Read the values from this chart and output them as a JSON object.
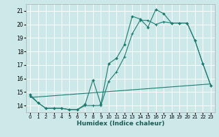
{
  "xlabel": "Humidex (Indice chaleur)",
  "background_color": "#cce8e8",
  "grid_color": "#ffffff",
  "line_color": "#1a7a6e",
  "xlim": [
    -0.5,
    23.5
  ],
  "ylim": [
    13.5,
    21.5
  ],
  "yticks": [
    14,
    15,
    16,
    17,
    18,
    19,
    20,
    21
  ],
  "xticks": [
    0,
    1,
    2,
    3,
    4,
    5,
    6,
    7,
    8,
    9,
    10,
    11,
    12,
    13,
    14,
    15,
    16,
    17,
    18,
    19,
    20,
    21,
    22,
    23
  ],
  "line1_x": [
    0,
    1,
    2,
    3,
    4,
    5,
    6,
    7,
    8,
    9,
    10,
    11,
    12,
    13,
    14,
    15,
    16,
    17,
    18,
    19,
    20,
    21,
    22,
    23
  ],
  "line1_y": [
    14.8,
    14.2,
    13.8,
    13.8,
    13.8,
    13.7,
    13.7,
    14.1,
    15.9,
    14.1,
    17.1,
    17.5,
    18.5,
    20.6,
    20.4,
    19.8,
    21.1,
    20.8,
    20.1,
    20.1,
    20.1,
    18.8,
    17.1,
    15.5
  ],
  "line2_x": [
    0,
    1,
    2,
    3,
    4,
    5,
    6,
    7,
    8,
    9,
    10,
    11,
    12,
    13,
    14,
    15,
    16,
    17,
    18,
    19,
    20,
    21,
    22,
    23
  ],
  "line2_y": [
    14.7,
    14.2,
    13.8,
    13.8,
    13.8,
    13.7,
    13.7,
    14.0,
    14.0,
    14.0,
    15.8,
    16.5,
    17.6,
    19.3,
    20.3,
    20.3,
    20.0,
    20.2,
    20.1,
    20.1,
    20.1,
    18.8,
    17.1,
    15.5
  ],
  "line3_x": [
    0,
    23
  ],
  "line3_y": [
    14.6,
    15.6
  ]
}
